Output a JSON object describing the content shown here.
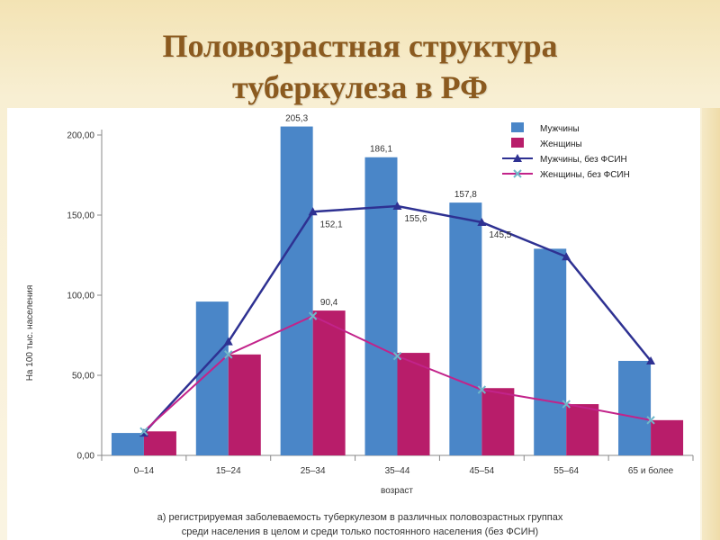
{
  "slide": {
    "title_line1": "Половозрастная структура",
    "title_line2": "туберкулеза в РФ"
  },
  "chart_data": {
    "type": "bar",
    "title": "",
    "xlabel": "возраст",
    "ylabel": "На 100 тыс. населения",
    "ylim": [
      0,
      200
    ],
    "yticks": [
      "0,00",
      "50,00",
      "100,00",
      "150,00",
      "200,00"
    ],
    "categories": [
      "0–14",
      "15–24",
      "25–34",
      "35–44",
      "45–54",
      "55–64",
      "65 и более"
    ],
    "series": [
      {
        "name": "Мужчины",
        "kind": "bar",
        "color": "#4a86c8",
        "values": [
          14,
          96,
          205.3,
          186.1,
          157.8,
          129,
          59
        ]
      },
      {
        "name": "Женщины",
        "kind": "bar",
        "color": "#b81d6a",
        "values": [
          15,
          63,
          90.4,
          64,
          42,
          32,
          22
        ]
      },
      {
        "name": "Мужчины, без ФСИН",
        "kind": "line",
        "marker": "triangle",
        "color": "#2e3192",
        "values": [
          14,
          71,
          152.1,
          155.6,
          145.5,
          124,
          59
        ]
      },
      {
        "name": "Женщины, без ФСИН",
        "kind": "line",
        "marker": "x",
        "color": "#c2238a",
        "values": [
          15,
          63,
          87,
          62,
          41,
          32,
          22
        ]
      }
    ],
    "data_labels": [
      {
        "text": "205,3",
        "category": 2,
        "series": 0
      },
      {
        "text": "186,1",
        "category": 3,
        "series": 0
      },
      {
        "text": "157,8",
        "category": 4,
        "series": 0
      },
      {
        "text": "90,4",
        "category": 2,
        "series": 1
      },
      {
        "text": "152,1",
        "category": 2,
        "series": 2
      },
      {
        "text": "155,6",
        "category": 3,
        "series": 2
      },
      {
        "text": "145,5",
        "category": 4,
        "series": 2
      }
    ],
    "legend_position": "top-right",
    "grid": false,
    "caption_line1": "а) регистрируемая заболеваемость туберкулезом в различных половозрастных группах",
    "caption_line2": "среди населения в целом и среди только постоянного населения (без ФСИН)"
  }
}
